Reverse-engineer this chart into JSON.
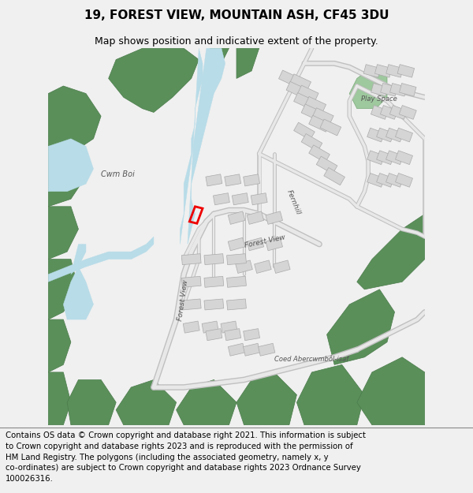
{
  "title_line1": "19, FOREST VIEW, MOUNTAIN ASH, CF45 3DU",
  "title_line2": "Map shows position and indicative extent of the property.",
  "footer_text": "Contains OS data © Crown copyright and database right 2021. This information is subject\nto Crown copyright and database rights 2023 and is reproduced with the permission of\nHM Land Registry. The polygons (including the associated geometry, namely x, y\nco-ordinates) are subject to Crown copyright and database rights 2023 Ordnance Survey\n100026316.",
  "map_bg": "#ffffff",
  "green_dark": "#5a8f5a",
  "green_light": "#9ec89e",
  "water_color": "#b8dce8",
  "building_fill": "#d5d5d5",
  "building_edge": "#aaaaaa",
  "highlight_red": "#ee0000",
  "text_color": "#555555",
  "footer_bg": "#ffffff",
  "title_bg": "#f0f0f0"
}
